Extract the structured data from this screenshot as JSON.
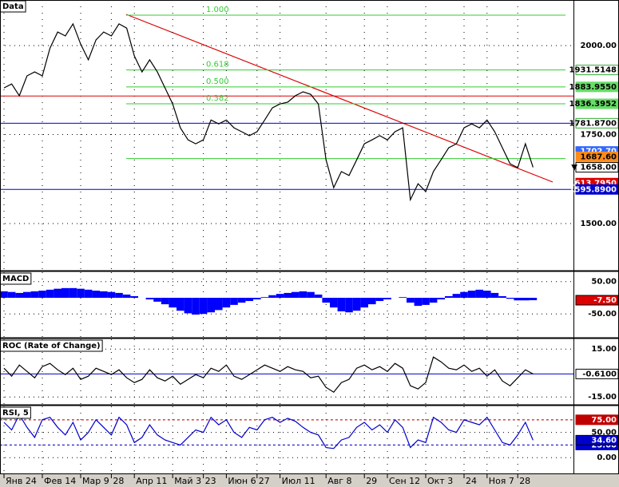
{
  "chart_data": [
    {
      "type": "line",
      "title": "Data",
      "color": "#000000",
      "categories": [
        "Янв 24",
        null,
        null,
        null,
        null,
        "Фев 14",
        null,
        null,
        null,
        null,
        "Мар 9",
        null,
        null,
        null,
        "28",
        null,
        null,
        "Апр 11",
        null,
        null,
        null,
        null,
        "Май 3",
        null,
        null,
        null,
        "23",
        null,
        null,
        "Июн 6",
        null,
        null,
        null,
        "27",
        null,
        null,
        "Июл 11",
        null,
        null,
        null,
        null,
        null,
        "Авг 8",
        null,
        null,
        null,
        null,
        "29",
        null,
        null,
        "Сен 12",
        null,
        null,
        null,
        null,
        "Окт 3",
        null,
        null,
        null,
        null,
        "24",
        null,
        null,
        "Ноя 7",
        null,
        null,
        null,
        "28",
        null,
        null
      ],
      "values": [
        1881,
        1892,
        1859,
        1915,
        1926,
        1915,
        1993,
        2038,
        2027,
        2061,
        2004,
        1960,
        2016,
        2038,
        2027,
        2061,
        2049,
        1971,
        1926,
        1960,
        1926,
        1881,
        1836,
        1769,
        1735,
        1724,
        1735,
        1791,
        1780,
        1791,
        1769,
        1758,
        1747,
        1758,
        1791,
        1825,
        1836,
        1841,
        1859,
        1870,
        1863,
        1836,
        1679,
        1601,
        1646,
        1635,
        1679,
        1724,
        1735,
        1747,
        1735,
        1758,
        1769,
        1567,
        1612,
        1590,
        1646,
        1679,
        1713,
        1724,
        1769,
        1780,
        1769,
        1791,
        1758,
        1713,
        1668,
        1657,
        1724,
        1658
      ],
      "ylim": [
        1370,
        2128
      ],
      "yticks": [
        {
          "value": 2000,
          "label": "2000.00"
        },
        {
          "value": 1750,
          "label": "1750.00"
        },
        {
          "value": 1500,
          "label": "1500.00"
        }
      ],
      "grid": true,
      "fib": [
        {
          "value": 2085.48,
          "label": "1.000"
        },
        {
          "value": 1931.5148,
          "label": "0.618"
        },
        {
          "value": 1883.955,
          "label": "0.500"
        },
        {
          "value": 1836.3952,
          "label": "0.382"
        },
        {
          "value": 1682.43
        }
      ],
      "fib_color": "#33cc33",
      "levels": [
        {
          "value": 1858.46,
          "color": "#dd0000"
        },
        {
          "value": 1781.87,
          "color": "#0000cc"
        },
        {
          "value": 1595.89,
          "color": "#0000cc"
        }
      ],
      "axis_labels": [
        {
          "value": 1931.5148,
          "label": "1931.5148",
          "color": "#ffffff"
        },
        {
          "value": 1883.955,
          "label": "1883.9550",
          "color": "#66dd66"
        },
        {
          "value": 1836.3952,
          "label": "1836.3952",
          "color": "#66dd66"
        },
        {
          "value": 1781.87,
          "label": "1781.8700",
          "color": "#ffffff"
        },
        {
          "value": 1702.7,
          "label": "1702.70",
          "color": "#3366ff"
        },
        {
          "value": 1687.6,
          "label": "1687.60",
          "color": "#ff8c1a"
        },
        {
          "value": 1613.795,
          "label": "1613.7950",
          "color": "#dd0000"
        },
        {
          "value": 1595.89,
          "label": "1595.8900",
          "color": "#0000cc"
        }
      ],
      "last": {
        "value": 1658,
        "label": "▼ 1658.00",
        "color": "#ffffff"
      }
    },
    {
      "type": "bar",
      "title": "MACD",
      "color": "#0000ff",
      "values": [
        20,
        18,
        15,
        18,
        20,
        22,
        25,
        28,
        30,
        30,
        28,
        25,
        22,
        20,
        18,
        15,
        10,
        5,
        0,
        -5,
        -12,
        -20,
        -30,
        -40,
        -48,
        -52,
        -50,
        -45,
        -38,
        -30,
        -22,
        -15,
        -10,
        -5,
        2,
        8,
        12,
        15,
        18,
        20,
        18,
        10,
        -15,
        -30,
        -42,
        -45,
        -40,
        -30,
        -20,
        -10,
        -5,
        0,
        2,
        -15,
        -25,
        -22,
        -15,
        -5,
        5,
        12,
        18,
        22,
        25,
        22,
        15,
        5,
        -3,
        -8,
        -8,
        -7.5
      ],
      "ylim": [
        -121,
        79
      ],
      "yticks": [
        {
          "value": 50,
          "label": "50.00"
        },
        {
          "value": -50,
          "label": "-50.00"
        }
      ],
      "grid": true,
      "last": {
        "value": -7.5,
        "label": "-7.50",
        "color": "#dd0000"
      }
    },
    {
      "type": "line",
      "title": "ROC (Rate of Change)",
      "color": "#000000",
      "values": [
        3,
        -2,
        5,
        1,
        -3,
        4,
        6,
        2,
        -1,
        3,
        -4,
        -2,
        3,
        1,
        -1,
        2,
        -3,
        -6,
        -4,
        2,
        -3,
        -5,
        -2,
        -7,
        -4,
        -1,
        -3,
        3,
        1,
        5,
        -2,
        -4,
        -1,
        2,
        5,
        3,
        1,
        4,
        2,
        1,
        -3,
        -2,
        -9,
        -12,
        -6,
        -4,
        3,
        5,
        2,
        4,
        1,
        6,
        3,
        -8,
        -10,
        -6,
        10,
        7,
        3,
        2,
        5,
        1,
        3,
        -2,
        2,
        -5,
        -8,
        -3,
        2,
        -0.61
      ],
      "ylim": [
        -19.4,
        21.1
      ],
      "yticks": [
        {
          "value": 15,
          "label": "15.00"
        },
        {
          "value": -15,
          "label": "-15.00"
        }
      ],
      "grid": true,
      "levels": [
        {
          "value": -0.61,
          "color": "#0000cc"
        }
      ],
      "last": {
        "value": -0.61,
        "label": "-0.6100",
        "color": "#ffffff"
      }
    },
    {
      "type": "line",
      "title": "RSI, 5",
      "color": "#0000cc",
      "values": [
        70,
        55,
        85,
        60,
        40,
        75,
        80,
        60,
        45,
        70,
        35,
        50,
        75,
        60,
        45,
        80,
        65,
        30,
        40,
        65,
        45,
        35,
        30,
        25,
        40,
        55,
        50,
        80,
        65,
        75,
        50,
        40,
        60,
        55,
        75,
        80,
        70,
        78,
        72,
        60,
        50,
        45,
        20,
        18,
        35,
        40,
        60,
        70,
        55,
        65,
        50,
        75,
        60,
        20,
        35,
        30,
        80,
        70,
        55,
        50,
        75,
        70,
        65,
        80,
        55,
        30,
        25,
        45,
        70,
        34.6
      ],
      "ylim": [
        -29.7,
        101.6
      ],
      "yticks": [
        {
          "value": 75,
          "label": "75.00"
        },
        {
          "value": 50,
          "label": "50.00"
        },
        {
          "value": 25,
          "label": "25.00"
        },
        {
          "value": 0,
          "label": "0.00"
        }
      ],
      "grid": true,
      "levels": [
        {
          "value": 75,
          "color": "#c00000",
          "dashed": true
        },
        {
          "value": 25,
          "color": "#0000cc",
          "dashed": true
        }
      ],
      "last": {
        "value": 34.6,
        "label": "34.60",
        "color": "#0000cc"
      }
    }
  ]
}
